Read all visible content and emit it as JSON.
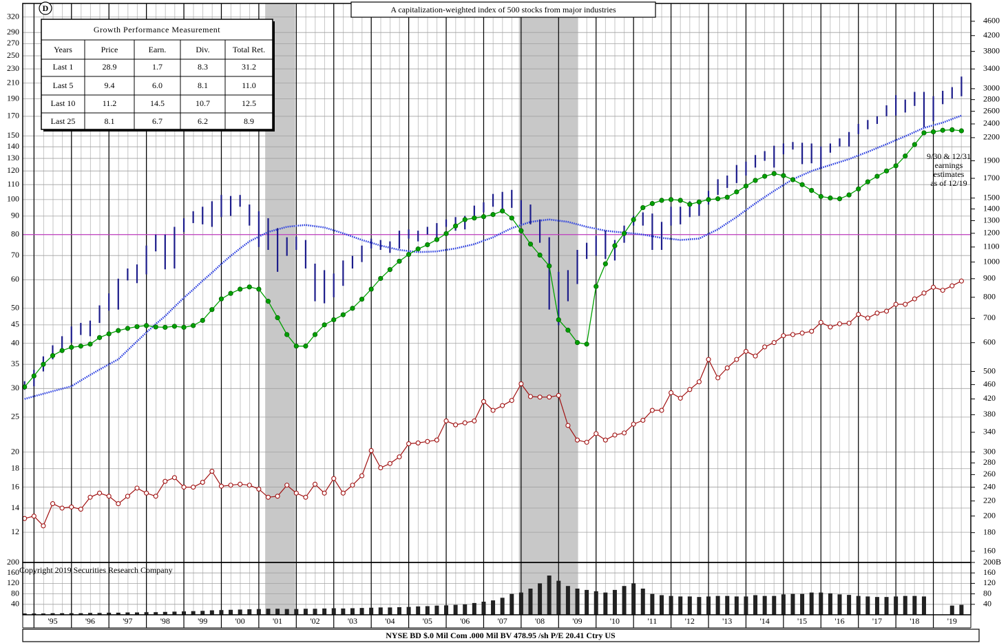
{
  "chart_data": {
    "type": "stock",
    "logo": "D",
    "title": "A capitalization-weighted index of 500 stocks from major industries",
    "annotation": [
      "9/30 & 12/31",
      "earnings",
      "estimates",
      "as of 12/19"
    ],
    "copyright": "Copyright 2019 Securities Research Company",
    "footer": "NYSE BD  $.0 Mil Com .000 Mil BV 478.95 /sh  P/E 20.41 Ctry US",
    "xlim": [
      1994.7,
      2020.0
    ],
    "xticks": [
      {
        "value": 1995.5,
        "label": "'95"
      },
      {
        "value": 1996.5,
        "label": "'96"
      },
      {
        "value": 1997.5,
        "label": "'97"
      },
      {
        "value": 1998.5,
        "label": "'98"
      },
      {
        "value": 1999.5,
        "label": "'99"
      },
      {
        "value": 2000.5,
        "label": "'00"
      },
      {
        "value": 2001.5,
        "label": "'01"
      },
      {
        "value": 2002.5,
        "label": "'02"
      },
      {
        "value": 2003.5,
        "label": "'03"
      },
      {
        "value": 2004.5,
        "label": "'04"
      },
      {
        "value": 2005.5,
        "label": "'05"
      },
      {
        "value": 2006.5,
        "label": "'06"
      },
      {
        "value": 2007.5,
        "label": "'07"
      },
      {
        "value": 2008.5,
        "label": "'08"
      },
      {
        "value": 2009.5,
        "label": "'09"
      },
      {
        "value": 2010.5,
        "label": "'10"
      },
      {
        "value": 2011.5,
        "label": "'11"
      },
      {
        "value": 2012.5,
        "label": "'12"
      },
      {
        "value": 2013.5,
        "label": "'13"
      },
      {
        "value": 2014.5,
        "label": "'14"
      },
      {
        "value": 2015.5,
        "label": "'15"
      },
      {
        "value": 2016.5,
        "label": "'16"
      },
      {
        "value": 2017.5,
        "label": "'17"
      },
      {
        "value": 2018.5,
        "label": "'18"
      },
      {
        "value": 2019.5,
        "label": "'19"
      }
    ],
    "xgrid": [
      1995,
      1996,
      1997,
      1998,
      1999,
      2000,
      2001,
      2002,
      2003,
      2004,
      2005,
      2006,
      2007,
      2008,
      2009,
      2010,
      2011,
      2012,
      2013,
      2014,
      2015,
      2016,
      2017,
      2018,
      2019
    ],
    "ylog": true,
    "ylim": [
      9.9,
      349
    ],
    "yticks": [
      12,
      14,
      16,
      18,
      20,
      25,
      30,
      35,
      40,
      45,
      50,
      60,
      70,
      80,
      90,
      100,
      110,
      120,
      130,
      140,
      150,
      170,
      190,
      210,
      230,
      250,
      270,
      290,
      320
    ],
    "y2lim": [
      149,
      5150
    ],
    "y2ticks": [
      160,
      180,
      200,
      220,
      240,
      260,
      280,
      300,
      340,
      380,
      420,
      460,
      500,
      600,
      700,
      800,
      900,
      1000,
      1100,
      1200,
      1300,
      1400,
      1500,
      1700,
      1900,
      2200,
      2400,
      2600,
      2800,
      3000,
      3400,
      3800,
      4200,
      4600
    ],
    "grid": true,
    "reference_line": {
      "value": 80,
      "color": "#c03cc0"
    },
    "shaded": [
      [
        2001.17,
        2001.97
      ],
      [
        2007.94,
        2009.52
      ]
    ],
    "shade_color": "#c8c8c8",
    "vlim": [
      0,
      200
    ],
    "vticks": [
      40,
      80,
      120,
      160,
      200
    ],
    "v2ticks": [
      40,
      80,
      120,
      160,
      {
        "value": 200,
        "label": "200B"
      }
    ],
    "x": [
      1994.75,
      1995,
      1995.25,
      1995.5,
      1995.75,
      1996,
      1996.25,
      1996.5,
      1996.75,
      1997,
      1997.25,
      1997.5,
      1997.75,
      1998,
      1998.25,
      1998.5,
      1998.75,
      1999,
      1999.25,
      1999.5,
      1999.75,
      2000,
      2000.25,
      2000.5,
      2000.75,
      2001,
      2001.25,
      2001.5,
      2001.75,
      2002,
      2002.25,
      2002.5,
      2002.75,
      2003,
      2003.25,
      2003.5,
      2003.75,
      2004,
      2004.25,
      2004.5,
      2004.75,
      2005,
      2005.25,
      2005.5,
      2005.75,
      2006,
      2006.25,
      2006.5,
      2006.75,
      2007,
      2007.25,
      2007.5,
      2007.75,
      2008,
      2008.25,
      2008.5,
      2008.75,
      2009,
      2009.25,
      2009.5,
      2009.75,
      2010,
      2010.25,
      2010.5,
      2010.75,
      2011,
      2011.25,
      2011.5,
      2011.75,
      2012,
      2012.25,
      2012.5,
      2012.75,
      2013,
      2013.25,
      2013.5,
      2013.75,
      2014,
      2014.25,
      2014.5,
      2014.75,
      2015,
      2015.25,
      2015.5,
      2015.75,
      2016,
      2016.25,
      2016.5,
      2016.75,
      2017,
      2017.25,
      2017.5,
      2017.75,
      2018,
      2018.25,
      2018.5,
      2018.75,
      2019,
      2019.25,
      2019.5,
      2019.75
    ],
    "price": {
      "axis": "y2",
      "color": "#1c1c8a",
      "high": [
        470,
        505,
        550,
        590,
        625,
        665,
        680,
        690,
        760,
        820,
        900,
        960,
        985,
        1110,
        1190,
        1190,
        1250,
        1320,
        1380,
        1420,
        1470,
        1530,
        1520,
        1530,
        1440,
        1380,
        1320,
        1240,
        1170,
        1175,
        1150,
        990,
        950,
        930,
        1010,
        1040,
        1110,
        1160,
        1150,
        1140,
        1220,
        1230,
        1220,
        1250,
        1280,
        1310,
        1330,
        1340,
        1430,
        1460,
        1540,
        1560,
        1580,
        1480,
        1440,
        1310,
        1170,
        940,
        950,
        1080,
        1130,
        1180,
        1220,
        1150,
        1260,
        1340,
        1370,
        1360,
        1290,
        1420,
        1420,
        1470,
        1470,
        1570,
        1690,
        1730,
        1850,
        1890,
        1970,
        2020,
        2090,
        2120,
        2140,
        2130,
        2120,
        2080,
        2120,
        2190,
        2280,
        2400,
        2460,
        2520,
        2700,
        2880,
        2800,
        2940,
        2940,
        2860,
        2960,
        3030,
        3240
      ],
      "low": [
        445,
        455,
        500,
        540,
        575,
        600,
        630,
        625,
        680,
        735,
        740,
        890,
        875,
        925,
        1070,
        955,
        960,
        1210,
        1280,
        1270,
        1250,
        1330,
        1340,
        1420,
        1260,
        1100,
        1080,
        940,
        1040,
        1080,
        960,
        780,
        770,
        800,
        860,
        960,
        1000,
        1090,
        1080,
        1060,
        1090,
        1160,
        1140,
        1190,
        1170,
        1250,
        1220,
        1230,
        1330,
        1370,
        1420,
        1400,
        1410,
        1270,
        1270,
        1130,
        740,
        670,
        780,
        870,
        1020,
        1040,
        1020,
        1010,
        1130,
        1260,
        1260,
        1080,
        1080,
        1260,
        1270,
        1330,
        1340,
        1440,
        1530,
        1600,
        1650,
        1730,
        1820,
        1900,
        1820,
        1980,
        2040,
        1860,
        1870,
        1810,
        2000,
        2080,
        2080,
        2250,
        2320,
        2400,
        2520,
        2530,
        2580,
        2690,
        2350,
        2440,
        2720,
        2820,
        2860
      ]
    },
    "moving_average": {
      "axis": "y2",
      "color": "#2a3ee0",
      "values": [
        420,
        427,
        434,
        441,
        448,
        455,
        472,
        489,
        506,
        523,
        540,
        572,
        605,
        640,
        675,
        710,
        753,
        797,
        840,
        888,
        935,
        988,
        1040,
        1090,
        1140,
        1175,
        1210,
        1230,
        1250,
        1258,
        1265,
        1255,
        1245,
        1223,
        1200,
        1175,
        1150,
        1130,
        1110,
        1095,
        1080,
        1072,
        1065,
        1067,
        1070,
        1080,
        1090,
        1105,
        1120,
        1145,
        1170,
        1205,
        1240,
        1265,
        1290,
        1300,
        1310,
        1300,
        1290,
        1270,
        1250,
        1235,
        1220,
        1212,
        1205,
        1198,
        1190,
        1178,
        1165,
        1158,
        1150,
        1155,
        1160,
        1195,
        1230,
        1280,
        1330,
        1390,
        1450,
        1510,
        1570,
        1630,
        1690,
        1735,
        1780,
        1815,
        1850,
        1885,
        1920,
        1965,
        2010,
        2060,
        2110,
        2165,
        2220,
        2280,
        2340,
        2380,
        2420,
        2475,
        2530
      ]
    },
    "earnings": {
      "axis": "y",
      "color": "#00a000",
      "values": [
        30.3,
        32.5,
        35,
        37,
        38.2,
        39,
        39.3,
        39.8,
        41.5,
        42.5,
        43.4,
        44,
        44.5,
        44.8,
        44.4,
        44.3,
        44.6,
        44.3,
        44.8,
        46.3,
        49.6,
        53.1,
        55,
        56.5,
        57.3,
        56.5,
        52.3,
        47.1,
        42.3,
        39.3,
        39.3,
        42.3,
        45,
        46.5,
        48,
        50,
        53,
        56.5,
        60.5,
        64,
        67.5,
        70.5,
        73,
        75,
        77.5,
        80.5,
        84.5,
        88,
        88.9,
        89.7,
        90.9,
        93,
        88.9,
        82,
        75.3,
        70.2,
        65.5,
        46.5,
        43.5,
        40.2,
        39.8,
        57.5,
        66.4,
        74.5,
        80.6,
        88,
        95,
        97.5,
        99.5,
        100,
        99.5,
        97,
        98.5,
        100,
        100.5,
        101.5,
        105,
        109,
        113,
        116,
        118,
        116.5,
        113.5,
        110,
        106,
        102,
        101,
        100.5,
        103,
        107,
        112,
        116,
        120,
        124,
        132,
        142,
        153,
        154,
        155.5,
        156,
        155
      ]
    },
    "dividends": {
      "axis": "y",
      "color": "#a01010",
      "values": [
        13.1,
        13.3,
        12.5,
        14.4,
        14.0,
        14.1,
        13.9,
        15.0,
        15.4,
        15.1,
        14.4,
        15.1,
        15.9,
        15.4,
        15.1,
        16.6,
        17.0,
        16.0,
        16.0,
        16.5,
        17.7,
        16.1,
        16.2,
        16.3,
        16.2,
        15.8,
        15.0,
        15.1,
        16.2,
        15.4,
        15.0,
        16.3,
        15.4,
        16.9,
        15.4,
        16.2,
        17.2,
        20.2,
        18.1,
        18.6,
        19.4,
        21.1,
        21.2,
        21.4,
        21.6,
        24.4,
        23.8,
        24.1,
        24.4,
        27.6,
        26.1,
        26.9,
        27.8,
        30.9,
        28.5,
        28.4,
        28.4,
        28.7,
        23.7,
        21.6,
        21.3,
        22.5,
        21.6,
        22.3,
        22.6,
        23.9,
        24.5,
        26.1,
        26.1,
        29.2,
        28.2,
        29.8,
        31.3,
        36.1,
        32.1,
        34.2,
        36.1,
        38.0,
        36.9,
        39.1,
        40.2,
        42.0,
        42.3,
        42.7,
        43.2,
        45.7,
        44.4,
        45.3,
        45.5,
        48.1,
        47.0,
        48.5,
        49.1,
        51.3,
        51.3,
        53.1,
        55.1,
        57.2,
        56.1,
        57.7,
        59.5
      ]
    },
    "volume": {
      "color": "#222222",
      "values": [
        5,
        5,
        5,
        6,
        6,
        6,
        6,
        7,
        7,
        8,
        8,
        9,
        9,
        10,
        10,
        11,
        12,
        13,
        14,
        15,
        17,
        18,
        19,
        20,
        21,
        22,
        23,
        23,
        22,
        22,
        23,
        23,
        24,
        25,
        24,
        25,
        26,
        27,
        28,
        28,
        29,
        30,
        32,
        33,
        35,
        36,
        38,
        40,
        45,
        50,
        55,
        65,
        80,
        85,
        100,
        120,
        150,
        130,
        110,
        100,
        95,
        90,
        85,
        95,
        110,
        120,
        100,
        80,
        75,
        72,
        70,
        70,
        68,
        70,
        72,
        72,
        70,
        70,
        75,
        72,
        72,
        78,
        80,
        80,
        85,
        85,
        82,
        78,
        76,
        72,
        70,
        68,
        68,
        70,
        72,
        72,
        70,
        0,
        0,
        35,
        38
      ]
    }
  },
  "performance_table": {
    "title": "Growth Performance Measurement",
    "columns": [
      "Years",
      "Price",
      "Earn.",
      "Div.",
      "Total Ret."
    ],
    "rows": [
      [
        "Last 1",
        "28.9",
        "1.7",
        "8.3",
        "31.2"
      ],
      [
        "Last 5",
        "9.4",
        "6.0",
        "8.1",
        "11.0"
      ],
      [
        "Last 10",
        "11.2",
        "14.5",
        "10.7",
        "12.5"
      ],
      [
        "Last 25",
        "8.1",
        "6.7",
        "6.2",
        "8.9"
      ]
    ]
  }
}
